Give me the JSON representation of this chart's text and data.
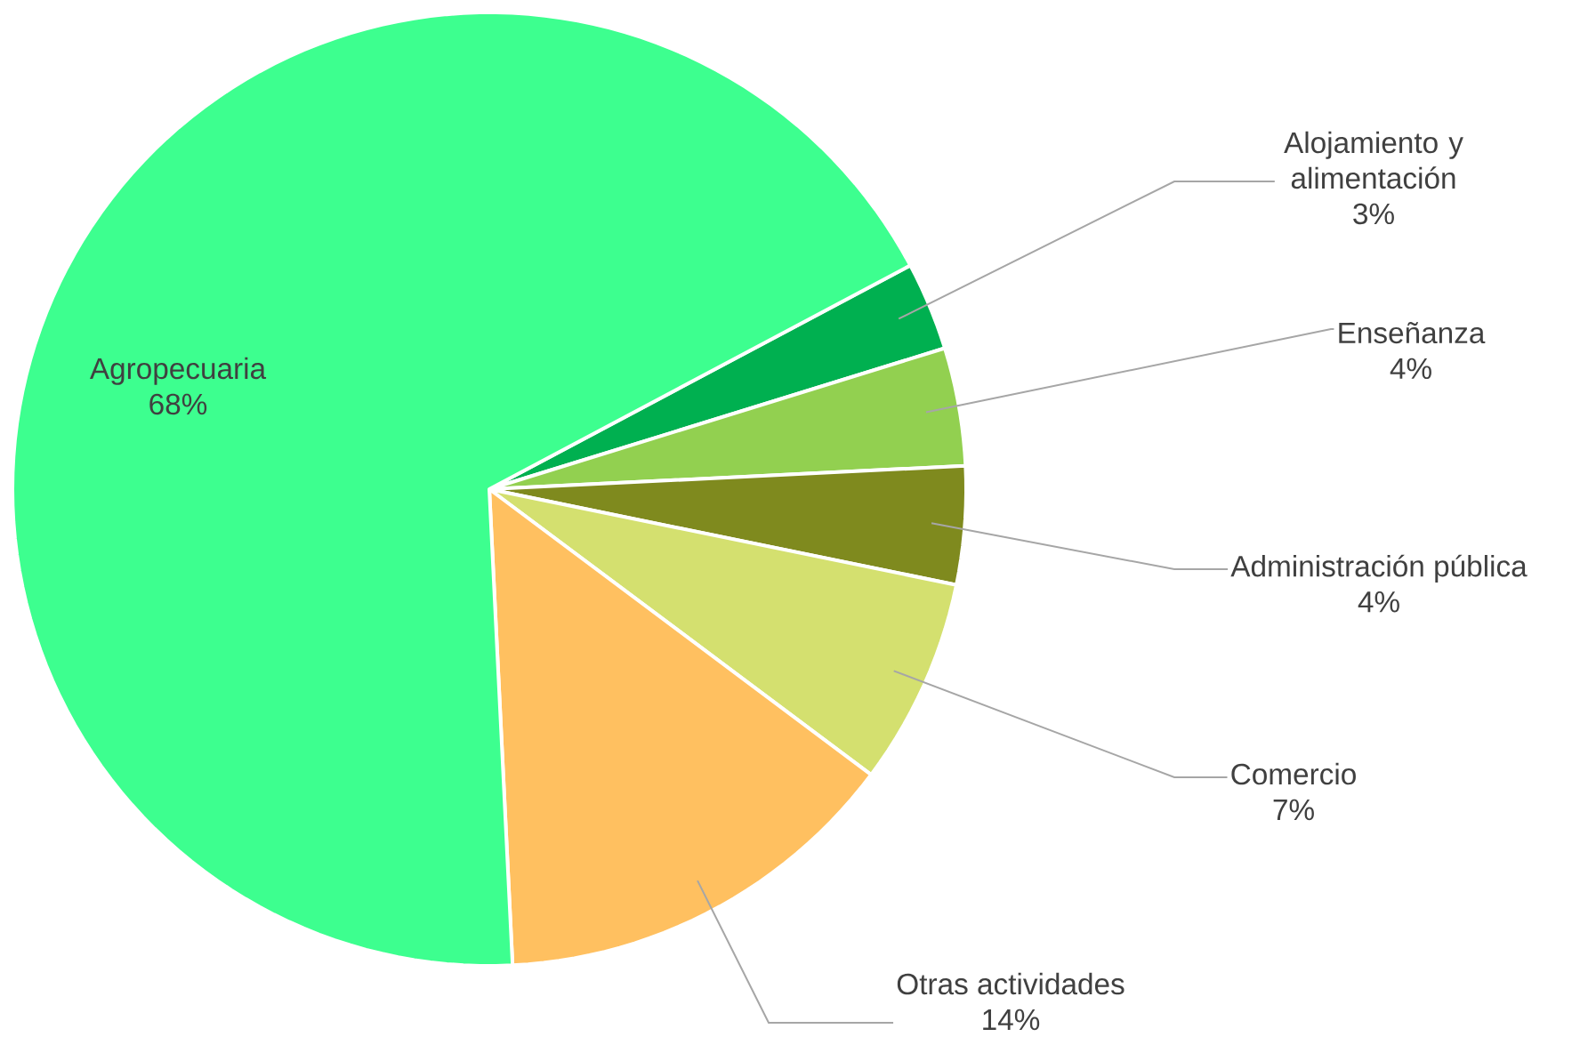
{
  "chart_data": {
    "type": "pie",
    "categories": [
      "Alojamiento y alimentación",
      "Enseñanza",
      "Administración pública",
      "Comercio",
      "Otras actividades",
      "Agropecuaria"
    ],
    "values": [
      3,
      4,
      4,
      7,
      14,
      68
    ],
    "value_labels": [
      "3%",
      "4%",
      "4%",
      "7%",
      "14%",
      "68%"
    ],
    "colors": [
      "#00b050",
      "#92d050",
      "#7f8a1e",
      "#d4e06f",
      "#ffc060",
      "#3dff8f"
    ]
  }
}
